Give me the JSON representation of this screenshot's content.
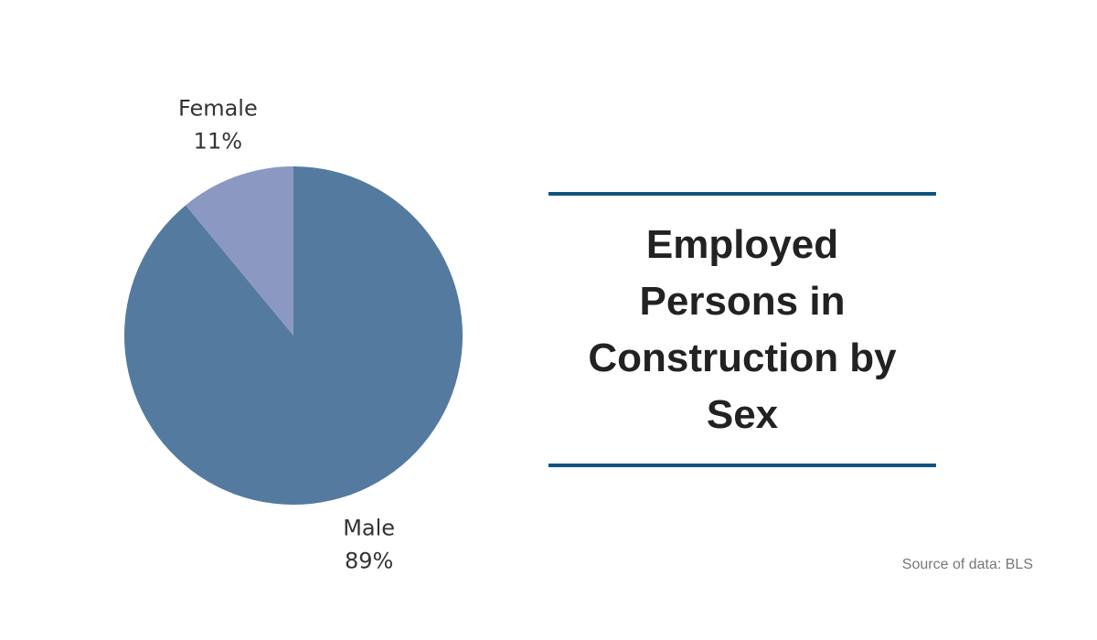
{
  "chart_data": {
    "type": "pie",
    "title": "Employed Persons in Construction by Sex",
    "categories": [
      "Male",
      "Female"
    ],
    "values": [
      89,
      11
    ],
    "value_labels": [
      "89%",
      "11%"
    ],
    "colors": [
      "#547a9f",
      "#8b99c2"
    ],
    "source": "Source of data: BLS"
  }
}
